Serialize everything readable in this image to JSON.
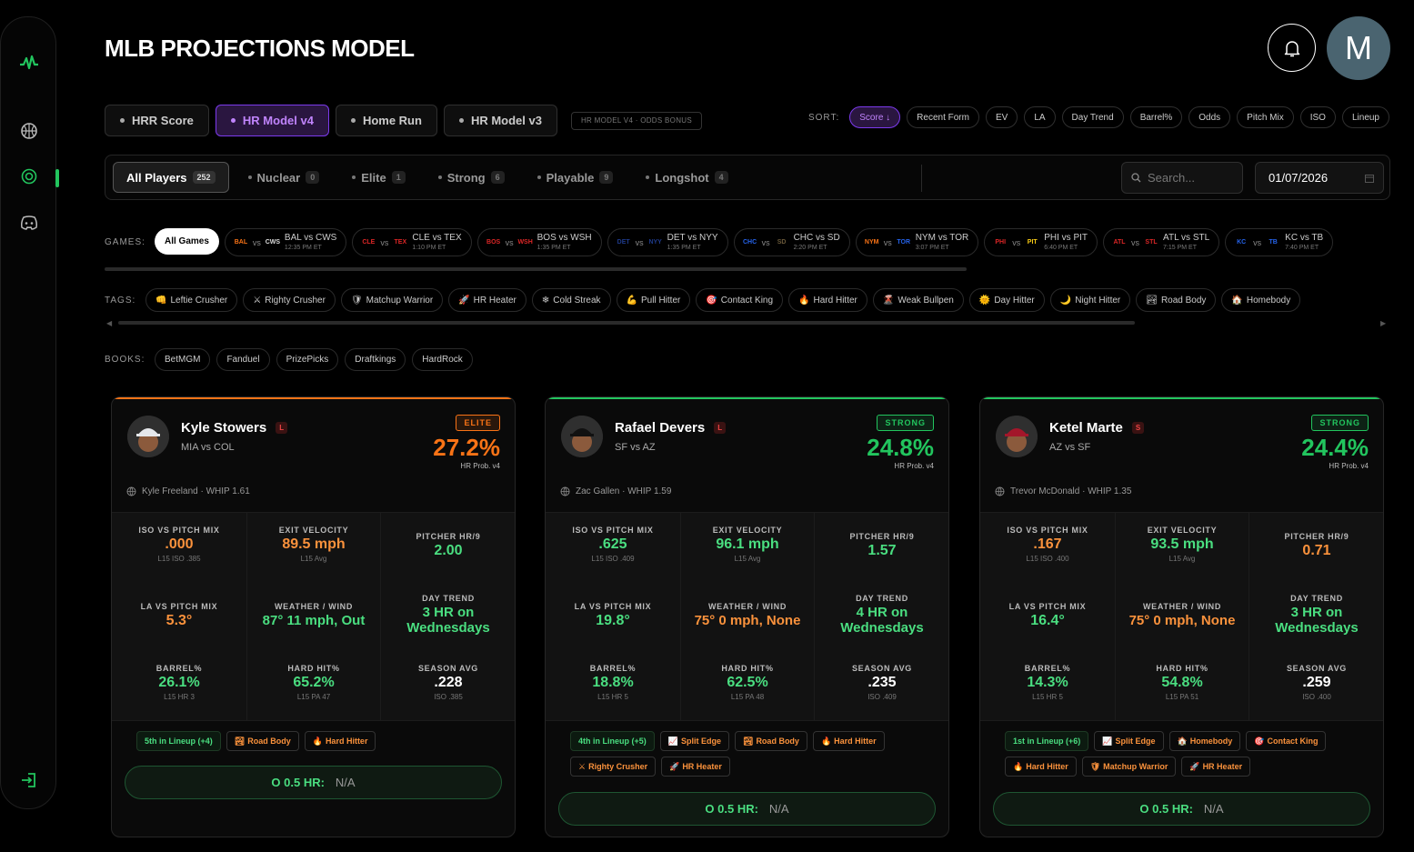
{
  "app": {
    "title": "MLB PROJECTIONS MODEL",
    "avatar_letter": "M"
  },
  "sidebar": {
    "icons": [
      "logo-icon",
      "basketball-icon",
      "target-icon",
      "discord-icon",
      "logout-icon"
    ]
  },
  "model_tabs": [
    {
      "label": "HRR Score",
      "active": false
    },
    {
      "label": "HR Model v4",
      "active": true
    },
    {
      "label": "Home Run",
      "active": false
    },
    {
      "label": "HR Model v3",
      "active": false
    }
  ],
  "odds_badge": "HR MODEL V4 · ODDS BONUS",
  "sort": {
    "label": "SORT:",
    "options": [
      {
        "label": "Score ↓",
        "active": true
      },
      {
        "label": "Recent Form"
      },
      {
        "label": "EV"
      },
      {
        "label": "LA"
      },
      {
        "label": "Day Trend"
      },
      {
        "label": "Barrel%"
      },
      {
        "label": "Odds"
      },
      {
        "label": "Pitch Mix"
      },
      {
        "label": "ISO"
      },
      {
        "label": "Lineup"
      }
    ]
  },
  "tiers": [
    {
      "label": "All Players",
      "count": "252",
      "active": true
    },
    {
      "label": "Nuclear",
      "count": "0"
    },
    {
      "label": "Elite",
      "count": "1"
    },
    {
      "label": "Strong",
      "count": "6"
    },
    {
      "label": "Playable",
      "count": "9"
    },
    {
      "label": "Longshot",
      "count": "4"
    }
  ],
  "search": {
    "placeholder": "Search..."
  },
  "date": {
    "value": "01/07/2026"
  },
  "games": {
    "label": "GAMES:",
    "all_label": "All Games",
    "items": [
      {
        "away": "BAL",
        "home": "CWS",
        "match": "BAL vs CWS",
        "time": "12:35 PM ET",
        "ac": "#f97316",
        "hc": "#ddd"
      },
      {
        "away": "CLE",
        "home": "TEX",
        "match": "CLE vs TEX",
        "time": "1:10 PM ET",
        "ac": "#dc2626",
        "hc": "#dc2626"
      },
      {
        "away": "BOS",
        "home": "WSH",
        "match": "BOS vs WSH",
        "time": "1:35 PM ET",
        "ac": "#dc2626",
        "hc": "#dc2626"
      },
      {
        "away": "DET",
        "home": "NYY",
        "match": "DET vs NYY",
        "time": "1:35 PM ET",
        "ac": "#1e3a8a",
        "hc": "#1e3a8a"
      },
      {
        "away": "CHC",
        "home": "SD",
        "match": "CHC vs SD",
        "time": "2:20 PM ET",
        "ac": "#2563eb",
        "hc": "#6b5a3a"
      },
      {
        "away": "NYM",
        "home": "TOR",
        "match": "NYM vs TOR",
        "time": "3:07 PM ET",
        "ac": "#f97316",
        "hc": "#2563eb"
      },
      {
        "away": "PHI",
        "home": "PIT",
        "match": "PHI vs PIT",
        "time": "6:40 PM ET",
        "ac": "#dc2626",
        "hc": "#facc15"
      },
      {
        "away": "ATL",
        "home": "STL",
        "match": "ATL vs STL",
        "time": "7:15 PM ET",
        "ac": "#dc2626",
        "hc": "#dc2626"
      },
      {
        "away": "KC",
        "home": "TB",
        "match": "KC vs TB",
        "time": "7:40 PM ET",
        "ac": "#2563eb",
        "hc": "#2563eb"
      }
    ]
  },
  "tags": {
    "label": "TAGS:",
    "items": [
      {
        "icon": "👊",
        "label": "Leftie Crusher"
      },
      {
        "icon": "⚔",
        "label": "Righty Crusher"
      },
      {
        "icon": "🛡",
        "label": "Matchup Warrior"
      },
      {
        "icon": "🚀",
        "label": "HR Heater"
      },
      {
        "icon": "❄",
        "label": "Cold Streak"
      },
      {
        "icon": "💪",
        "label": "Pull Hitter"
      },
      {
        "icon": "🎯",
        "label": "Contact King"
      },
      {
        "icon": "🔥",
        "label": "Hard Hitter"
      },
      {
        "icon": "🌋",
        "label": "Weak Bullpen"
      },
      {
        "icon": "🌞",
        "label": "Day Hitter"
      },
      {
        "icon": "🌙",
        "label": "Night Hitter"
      },
      {
        "icon": "🏞",
        "label": "Road Body"
      },
      {
        "icon": "🏠",
        "label": "Homebody"
      }
    ]
  },
  "books": {
    "label": "BOOKS:",
    "items": [
      "BetMGM",
      "Fanduel",
      "PrizePicks",
      "Draftkings",
      "HardRock"
    ]
  },
  "players": [
    {
      "name": "Kyle Stowers",
      "hand": "L",
      "matchup": "MIA vs COL",
      "tier": "ELITE",
      "tier_color": "#f97316",
      "prob": "27.2%",
      "prob_label": "HR Prob. v4",
      "pitcher": "Kyle Freeland · WHIP 1.61",
      "cap_color": "#e5e7eb",
      "stats": {
        "iso_mix": {
          "label": "ISO VS PITCH MIX",
          "value": ".000",
          "sub": "L15 ISO .385",
          "tone": "orange"
        },
        "exit_velo": {
          "label": "EXIT VELOCITY",
          "value": "89.5 mph",
          "sub": "L15 Avg",
          "tone": "orange"
        },
        "pitcher_hr9": {
          "label": "PITCHER HR/9",
          "value": "2.00",
          "tone": "green"
        },
        "la_mix": {
          "label": "LA VS PITCH MIX",
          "value": "5.3°",
          "tone": "orange"
        },
        "weather": {
          "label": "WEATHER / WIND",
          "value": "87° 11 mph, Out",
          "tone": "green"
        },
        "day_trend": {
          "label": "DAY TREND",
          "value": "3 HR on Wednesdays",
          "tone": "green"
        },
        "barrel": {
          "label": "BARREL%",
          "value": "26.1%",
          "sub": "L15 HR 3",
          "tone": "green"
        },
        "hard_hit": {
          "label": "HARD HIT%",
          "value": "65.2%",
          "sub": "L15 PA 47",
          "tone": "green"
        },
        "season_avg": {
          "label": "SEASON AVG",
          "value": ".228",
          "sub": "ISO .385",
          "tone": "white"
        }
      },
      "tags": [
        {
          "label": "5th in Lineup (+4)",
          "lineup": true
        },
        {
          "icon": "🏞",
          "label": "Road Body"
        },
        {
          "icon": "🔥",
          "label": "Hard Hitter"
        }
      ],
      "o_hr_label": "O 0.5 HR:",
      "o_hr_value": "N/A"
    },
    {
      "name": "Rafael Devers",
      "hand": "L",
      "matchup": "SF vs AZ",
      "tier": "STRONG",
      "tier_color": "#22c55e",
      "prob": "24.8%",
      "prob_label": "HR Prob. v4",
      "pitcher": "Zac Gallen · WHIP 1.59",
      "cap_color": "#111",
      "stats": {
        "iso_mix": {
          "label": "ISO VS PITCH MIX",
          "value": ".625",
          "sub": "L15 ISO .409",
          "tone": "green"
        },
        "exit_velo": {
          "label": "EXIT VELOCITY",
          "value": "96.1 mph",
          "sub": "L15 Avg",
          "tone": "green"
        },
        "pitcher_hr9": {
          "label": "PITCHER HR/9",
          "value": "1.57",
          "tone": "green"
        },
        "la_mix": {
          "label": "LA VS PITCH MIX",
          "value": "19.8°",
          "tone": "green"
        },
        "weather": {
          "label": "WEATHER / WIND",
          "value": "75° 0 mph, None",
          "tone": "orange"
        },
        "day_trend": {
          "label": "DAY TREND",
          "value": "4 HR on Wednesdays",
          "tone": "green"
        },
        "barrel": {
          "label": "BARREL%",
          "value": "18.8%",
          "sub": "L15 HR 5",
          "tone": "green"
        },
        "hard_hit": {
          "label": "HARD HIT%",
          "value": "62.5%",
          "sub": "L15 PA 48",
          "tone": "green"
        },
        "season_avg": {
          "label": "SEASON AVG",
          "value": ".235",
          "sub": "ISO .409",
          "tone": "white"
        }
      },
      "tags": [
        {
          "label": "4th in Lineup (+5)",
          "lineup": true
        },
        {
          "icon": "📈",
          "label": "Split Edge"
        },
        {
          "icon": "🏞",
          "label": "Road Body"
        },
        {
          "icon": "🔥",
          "label": "Hard Hitter"
        },
        {
          "icon": "⚔",
          "label": "Righty Crusher"
        },
        {
          "icon": "🚀",
          "label": "HR Heater"
        }
      ],
      "o_hr_label": "O 0.5 HR:",
      "o_hr_value": "N/A"
    },
    {
      "name": "Ketel Marte",
      "hand": "S",
      "matchup": "AZ vs SF",
      "tier": "STRONG",
      "tier_color": "#22c55e",
      "prob": "24.4%",
      "prob_label": "HR Prob. v4",
      "pitcher": "Trevor McDonald · WHIP 1.35",
      "cap_color": "#a3162a",
      "stats": {
        "iso_mix": {
          "label": "ISO VS PITCH MIX",
          "value": ".167",
          "sub": "L15 ISO .400",
          "tone": "orange"
        },
        "exit_velo": {
          "label": "EXIT VELOCITY",
          "value": "93.5 mph",
          "sub": "L15 Avg",
          "tone": "green"
        },
        "pitcher_hr9": {
          "label": "PITCHER HR/9",
          "value": "0.71",
          "tone": "orange"
        },
        "la_mix": {
          "label": "LA VS PITCH MIX",
          "value": "16.4°",
          "tone": "green"
        },
        "weather": {
          "label": "WEATHER / WIND",
          "value": "75° 0 mph, None",
          "tone": "orange"
        },
        "day_trend": {
          "label": "DAY TREND",
          "value": "3 HR on Wednesdays",
          "tone": "green"
        },
        "barrel": {
          "label": "BARREL%",
          "value": "14.3%",
          "sub": "L15 HR 5",
          "tone": "green"
        },
        "hard_hit": {
          "label": "HARD HIT%",
          "value": "54.8%",
          "sub": "L15 PA 51",
          "tone": "green"
        },
        "season_avg": {
          "label": "SEASON AVG",
          "value": ".259",
          "sub": "ISO .400",
          "tone": "white"
        }
      },
      "tags": [
        {
          "label": "1st in Lineup (+6)",
          "lineup": true
        },
        {
          "icon": "📈",
          "label": "Split Edge"
        },
        {
          "icon": "🏠",
          "label": "Homebody"
        },
        {
          "icon": "🎯",
          "label": "Contact King"
        },
        {
          "icon": "🔥",
          "label": "Hard Hitter"
        },
        {
          "icon": "🛡",
          "label": "Matchup Warrior"
        },
        {
          "icon": "🚀",
          "label": "HR Heater"
        }
      ],
      "o_hr_label": "O 0.5 HR:",
      "o_hr_value": "N/A"
    }
  ]
}
